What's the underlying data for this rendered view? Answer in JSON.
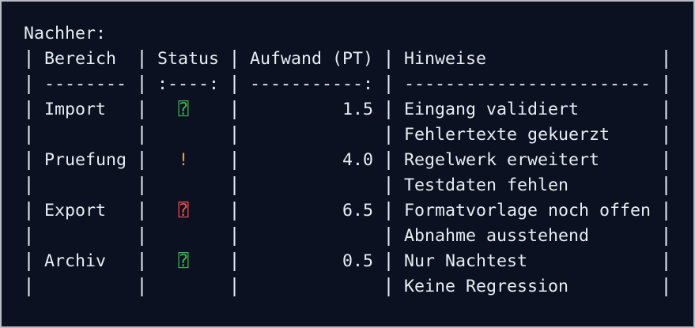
{
  "terminal": {
    "heading": "Nachher:",
    "table": {
      "header": [
        "Bereich",
        "Status",
        "Aufwand (PT)",
        "Hinweise"
      ],
      "separator": [
        "--------",
        ":----:",
        "-----------:",
        "------------------------"
      ],
      "rows": [
        {
          "area": "Import",
          "status": "⍰",
          "status_color": "#3fb950",
          "effort": "1.5",
          "notes": [
            "Eingang validiert",
            "Fehlertexte gekuerzt"
          ]
        },
        {
          "area": "Pruefung",
          "status": "!",
          "status_color": "#f0a030",
          "effort": "4.0",
          "notes": [
            "Regelwerk erweitert",
            "Testdaten fehlen"
          ]
        },
        {
          "area": "Export",
          "status": "⍰",
          "status_color": "#f85149",
          "effort": "6.5",
          "notes": [
            "Formatvorlage noch offen",
            "Abnahme ausstehend"
          ]
        },
        {
          "area": "Archiv",
          "status": "⍰",
          "status_color": "#3fb950",
          "effort": "0.5",
          "notes": [
            "Nur Nachtest",
            "Keine Regression"
          ]
        }
      ]
    }
  }
}
